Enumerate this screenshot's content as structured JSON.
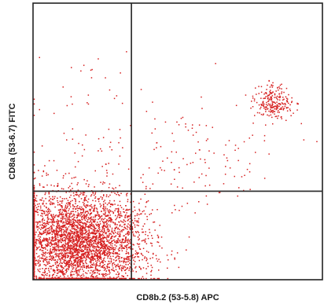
{
  "chart_data": {
    "type": "scatter",
    "title": "",
    "xlabel": "CD8b.2 (53-5.8) APC",
    "ylabel": "CD8a (53-6.7) FITC",
    "xlim": [
      0,
      100
    ],
    "ylim": [
      0,
      100
    ],
    "grid": false,
    "legend": "none",
    "point_color": "#d62020",
    "gate_x": 34,
    "gate_y": 32,
    "populations": [
      {
        "center": [
          17,
          13
        ],
        "spread": [
          11,
          9
        ],
        "count": 3200
      },
      {
        "center": [
          12,
          20
        ],
        "spread": [
          13,
          9
        ],
        "count": 500
      },
      {
        "center": [
          83,
          64
        ],
        "spread": [
          3.2,
          3.2
        ],
        "count": 230
      },
      {
        "center": [
          58,
          46
        ],
        "spread": [
          14,
          9
        ],
        "count": 120
      },
      {
        "center": [
          22,
          58
        ],
        "spread": [
          14,
          17
        ],
        "count": 70
      }
    ]
  }
}
